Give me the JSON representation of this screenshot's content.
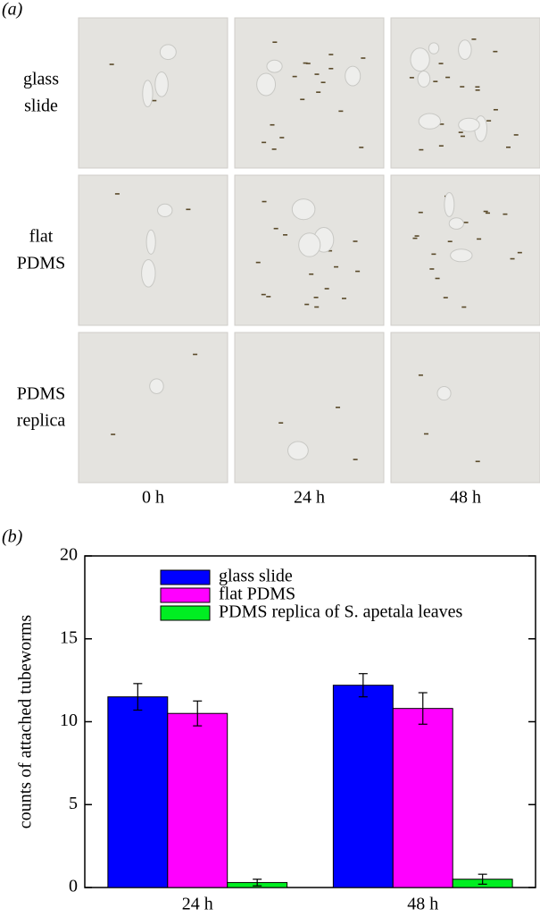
{
  "panel_a": {
    "label": "(a)",
    "rows": [
      [
        "glass",
        "slide"
      ],
      [
        "flat",
        "PDMS"
      ],
      [
        "PDMS",
        "replica"
      ]
    ],
    "columns": [
      "0 h",
      "24 h",
      "48 h"
    ]
  },
  "chart_data": {
    "type": "bar",
    "panel_label": "(b)",
    "ylabel": "counts of attached tubeworms",
    "categories": [
      "24 h",
      "48 h"
    ],
    "series": [
      {
        "name": "glass slide",
        "color": "#0000ff",
        "values": [
          11.5,
          12.2
        ],
        "errors": [
          0.8,
          0.7
        ]
      },
      {
        "name": "flat PDMS",
        "color": "#ff00ff",
        "values": [
          10.5,
          10.8
        ],
        "errors": [
          0.75,
          0.95
        ]
      },
      {
        "name": "PDMS replica of S. apetala leaves",
        "color": "#00ee22",
        "values": [
          0.3,
          0.5
        ],
        "errors": [
          0.2,
          0.3
        ]
      }
    ],
    "ylim": [
      0,
      20
    ],
    "yticks": [
      0,
      5,
      10,
      15,
      20
    ]
  }
}
